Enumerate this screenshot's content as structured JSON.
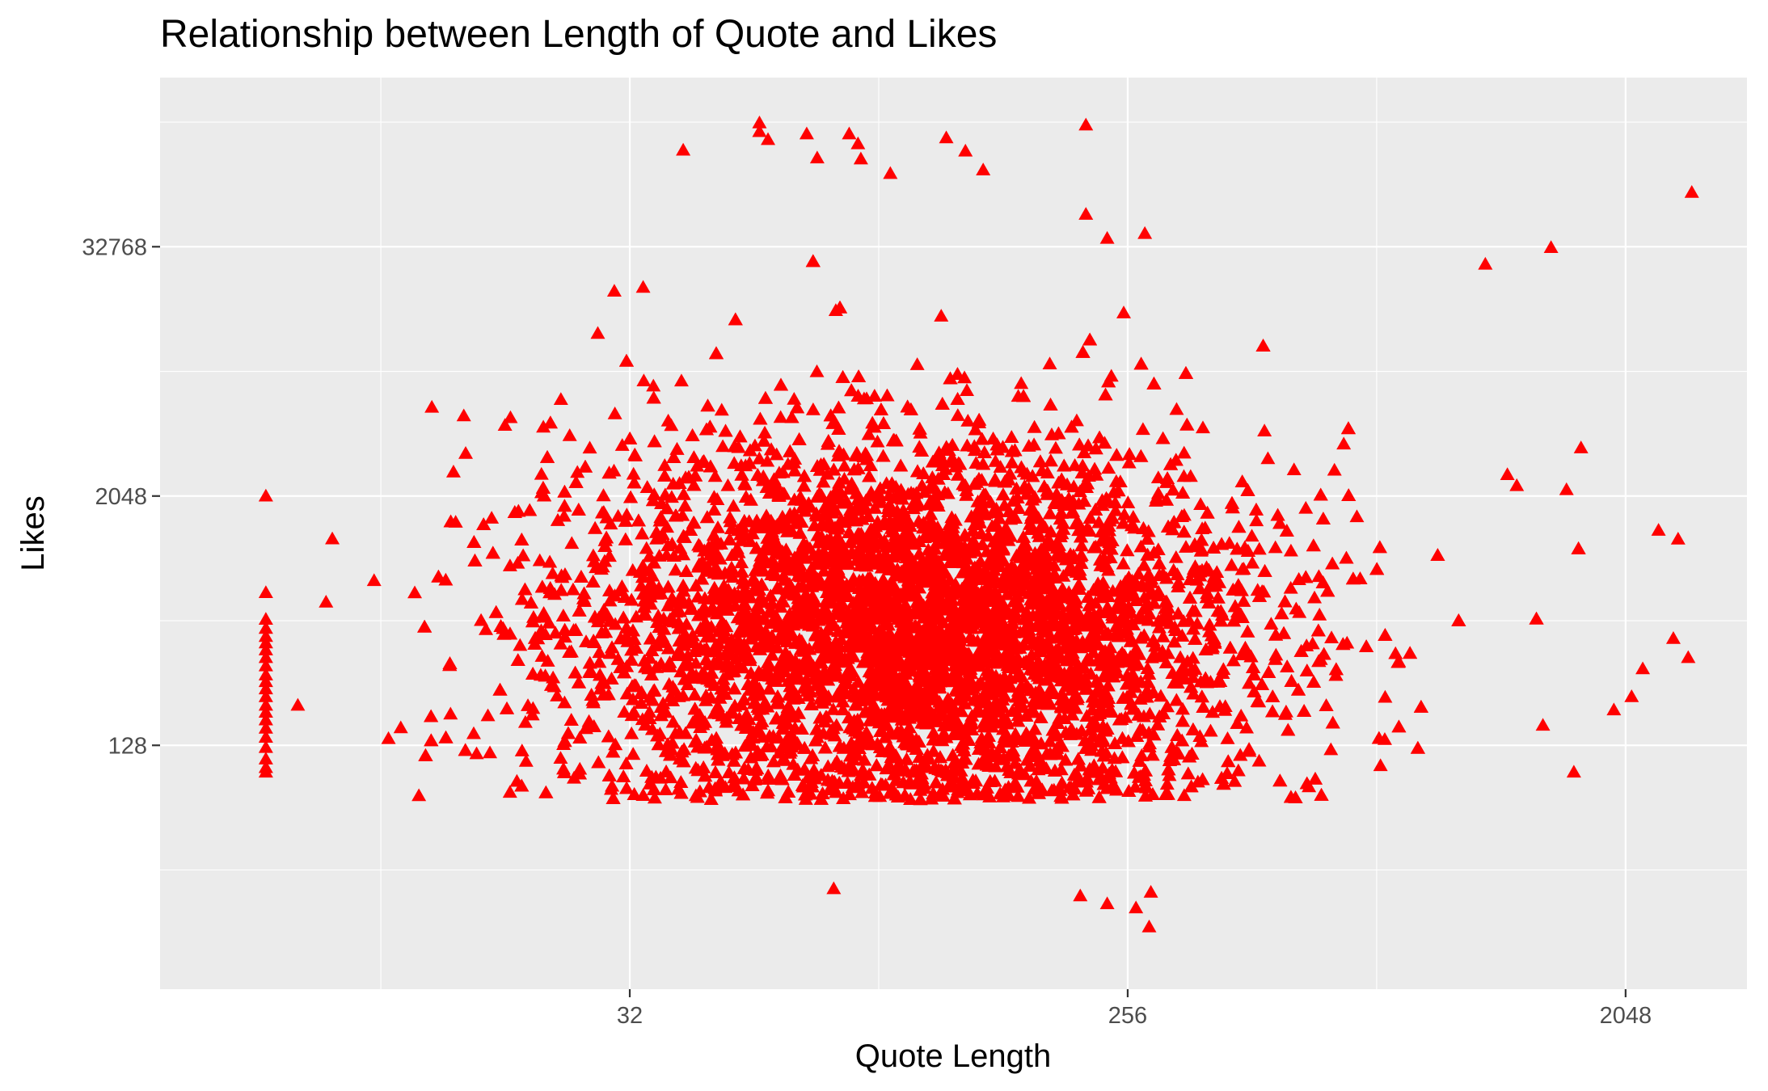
{
  "chart_data": {
    "type": "scatter",
    "title": "Relationship between Length of Quote and Likes",
    "xlabel": "Quote Length",
    "ylabel": "Likes",
    "x_scale": "log2",
    "y_scale": "log2",
    "x_ticks": [
      32,
      256,
      2048
    ],
    "y_ticks": [
      128,
      2048,
      32768
    ],
    "xlim": [
      4.5,
      3400
    ],
    "ylim": [
      8.5,
      215000
    ],
    "grid": true,
    "legend": "none",
    "marker": "triangle",
    "marker_color": "#ff0000",
    "cloud": {
      "n": 9000,
      "x_log2_mean": 6.7,
      "x_log2_sd": 1.05,
      "y_log2_mean": 8.9,
      "y_log2_sd": 1.55,
      "y_floor": 70
    },
    "x_min_column": {
      "x": 7,
      "likes": [
        2048,
        700,
        520,
        470,
        430,
        400,
        370,
        340,
        310,
        280,
        260,
        240,
        220,
        200,
        185,
        170,
        155,
        140,
        125,
        110,
        100,
        95
      ]
    },
    "points": [
      [
        40,
        96000
      ],
      [
        55,
        118000
      ],
      [
        55,
        130000
      ],
      [
        57,
        108000
      ],
      [
        67,
        115000
      ],
      [
        70,
        88000
      ],
      [
        80,
        115000
      ],
      [
        83,
        103000
      ],
      [
        84,
        87000
      ],
      [
        95,
        74000
      ],
      [
        120,
        110000
      ],
      [
        130,
        95000
      ],
      [
        140,
        77000
      ],
      [
        215,
        127000
      ],
      [
        215,
        47000
      ],
      [
        235,
        36000
      ],
      [
        275,
        38000
      ],
      [
        2700,
        60000
      ],
      [
        1500,
        32500
      ],
      [
        1140,
        27000
      ],
      [
        28,
        12500
      ],
      [
        30,
        20000
      ],
      [
        14,
        5500
      ],
      [
        16,
        5000
      ],
      [
        19,
        4500
      ],
      [
        24,
        6000
      ],
      [
        9,
        630
      ],
      [
        11,
        800
      ],
      [
        8,
        200
      ],
      [
        210,
        24
      ],
      [
        235,
        22
      ],
      [
        265,
        21
      ],
      [
        280,
        17
      ],
      [
        282,
        25
      ],
      [
        75,
        26
      ],
      [
        2550,
        1270
      ],
      [
        2660,
        340
      ],
      [
        2500,
        420
      ],
      [
        2200,
        300
      ],
      [
        2100,
        220
      ],
      [
        1950,
        190
      ],
      [
        1650,
        95
      ],
      [
        1450,
        160
      ],
      [
        1600,
        2200
      ],
      [
        1250,
        2600
      ],
      [
        1300,
        2300
      ],
      [
        2350,
        1400
      ],
      [
        1700,
        3500
      ]
    ]
  }
}
